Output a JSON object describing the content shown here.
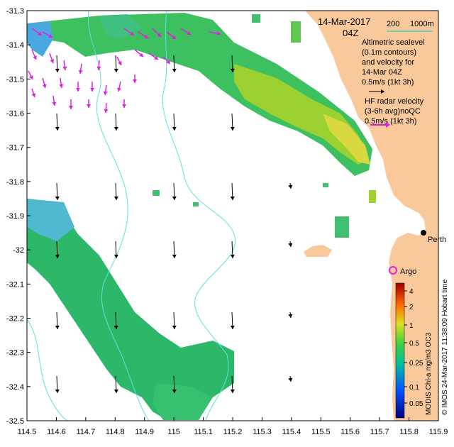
{
  "title": {
    "date": "14-Mar-2017",
    "time": "04Z"
  },
  "scale": {
    "label_a": "200",
    "label_b": "1000m",
    "color": "#40d0c0"
  },
  "legend": {
    "altimetric": [
      "Altimetric sealevel",
      "(0.1m contours)",
      "and velocity for",
      "14-Mar 04Z",
      "0.5m/s (1kt 3h)"
    ],
    "hf_radar": [
      "HF radar velocity",
      "(3-6h avg)noQC",
      "0.5m/s (1kt 3h)"
    ],
    "altimetric_arrow_color": "#000000",
    "hf_arrow_color": "#e020e0"
  },
  "places": {
    "perth": "Perth",
    "argo": "Argo"
  },
  "axes": {
    "x_ticks": [
      "114.5",
      "114.6",
      "114.7",
      "114.8",
      "114.9",
      "115",
      "115.1",
      "115.2",
      "115.3",
      "115.4",
      "115.5",
      "115.6",
      "115.7",
      "115.8",
      "115.9"
    ],
    "y_ticks": [
      "-31.3",
      "-31.4",
      "-31.5",
      "-31.6",
      "-31.7",
      "-31.8",
      "-31.9",
      "-32",
      "-32.1",
      "-32.2",
      "-32.3",
      "-32.4",
      "-32.5"
    ],
    "lon_range": [
      114.5,
      115.9
    ],
    "lat_range": [
      -32.5,
      -31.3
    ]
  },
  "colorbar": {
    "ticks": [
      "4",
      "2",
      "1",
      "0.5",
      "0.25",
      "0.1",
      "0.05"
    ],
    "label": "MODIS Chl-a mg/m3 OC3"
  },
  "credit": "© IMOS 24-Mar-2017 11:38:09 Hobart time",
  "colors": {
    "land": "#f9c89b",
    "contour": "#5fe0e0",
    "chl_low": "#00a0ff",
    "chl_mid": "#2cc070",
    "chl_high": "#f0e040"
  }
}
